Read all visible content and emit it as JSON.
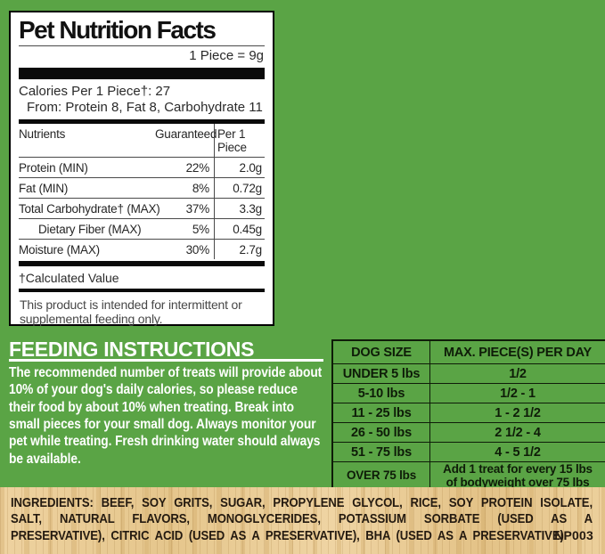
{
  "panel": {
    "title": "Pet Nutrition Facts",
    "serving": "1 Piece = 9g",
    "calories_line": "Calories Per 1 Piece†: 27",
    "calories_from": "From: Protein 8, Fat 8, Carbohydrate 11",
    "columns": {
      "nutrient": "Nutrients",
      "guaranteed": "Guaranteed",
      "per_piece": "Per 1 Piece"
    },
    "rows": [
      {
        "label": "Protein (MIN)",
        "guaranteed": "22%",
        "per_piece": "2.0g"
      },
      {
        "label": "Fat (MIN)",
        "guaranteed": "8%",
        "per_piece": "0.72g"
      },
      {
        "label": "Total Carbohydrate† (MAX)",
        "guaranteed": "37%",
        "per_piece": "3.3g"
      },
      {
        "label": "Dietary Fiber (MAX)",
        "guaranteed": "5%",
        "per_piece": "0.45g"
      },
      {
        "label": "Moisture (MAX)",
        "guaranteed": "30%",
        "per_piece": "2.7g"
      }
    ],
    "footnote": "†Calculated Value",
    "note": "This product is intended for intermittent or supplemental feeding only."
  },
  "feeding": {
    "heading": "FEEDING INSTRUCTIONS",
    "body": "The recommended number of treats will provide about 10% of your dog's daily calories, so please reduce their food by about 10% when treating. Break into small pieces for your small dog. Always monitor your pet while treating. Fresh drinking water should always be available."
  },
  "dog_table": {
    "headers": [
      "DOG SIZE",
      "MAX. PIECE(S) PER DAY"
    ],
    "rows": [
      [
        "UNDER 5 lbs",
        "1/2"
      ],
      [
        "5-10 lbs",
        "1/2 - 1"
      ],
      [
        "11 - 25 lbs",
        "1 - 2 1/2"
      ],
      [
        "26 - 50 lbs",
        "2 1/2 - 4"
      ],
      [
        "51 - 75 lbs",
        "4 - 5 1/2"
      ],
      [
        "OVER 75 lbs",
        "Add 1 treat for every 15 lbs of bodyweight over 75 lbs"
      ]
    ]
  },
  "ingredients": {
    "label": "INGREDIENTS:",
    "text": " BEEF, SOY GRITS, SUGAR, PROPYLENE GLYCOL, RICE, SOY PROTEIN ISOLATE, SALT, NATURAL FLAVORS, MONOGLYCERIDES, POTASSIUM SORBATE (USED AS A PRESERVATIVE), CITRIC ACID (USED AS A PRESERVATIVE), BHA (USED AS A PRESERVATIVE).",
    "code": "NP003"
  },
  "colors": {
    "background_green": "#5aa445",
    "wood_tan": "#e9cd97",
    "panel_white": "#ffffff",
    "ink_black": "#0e1c08"
  }
}
